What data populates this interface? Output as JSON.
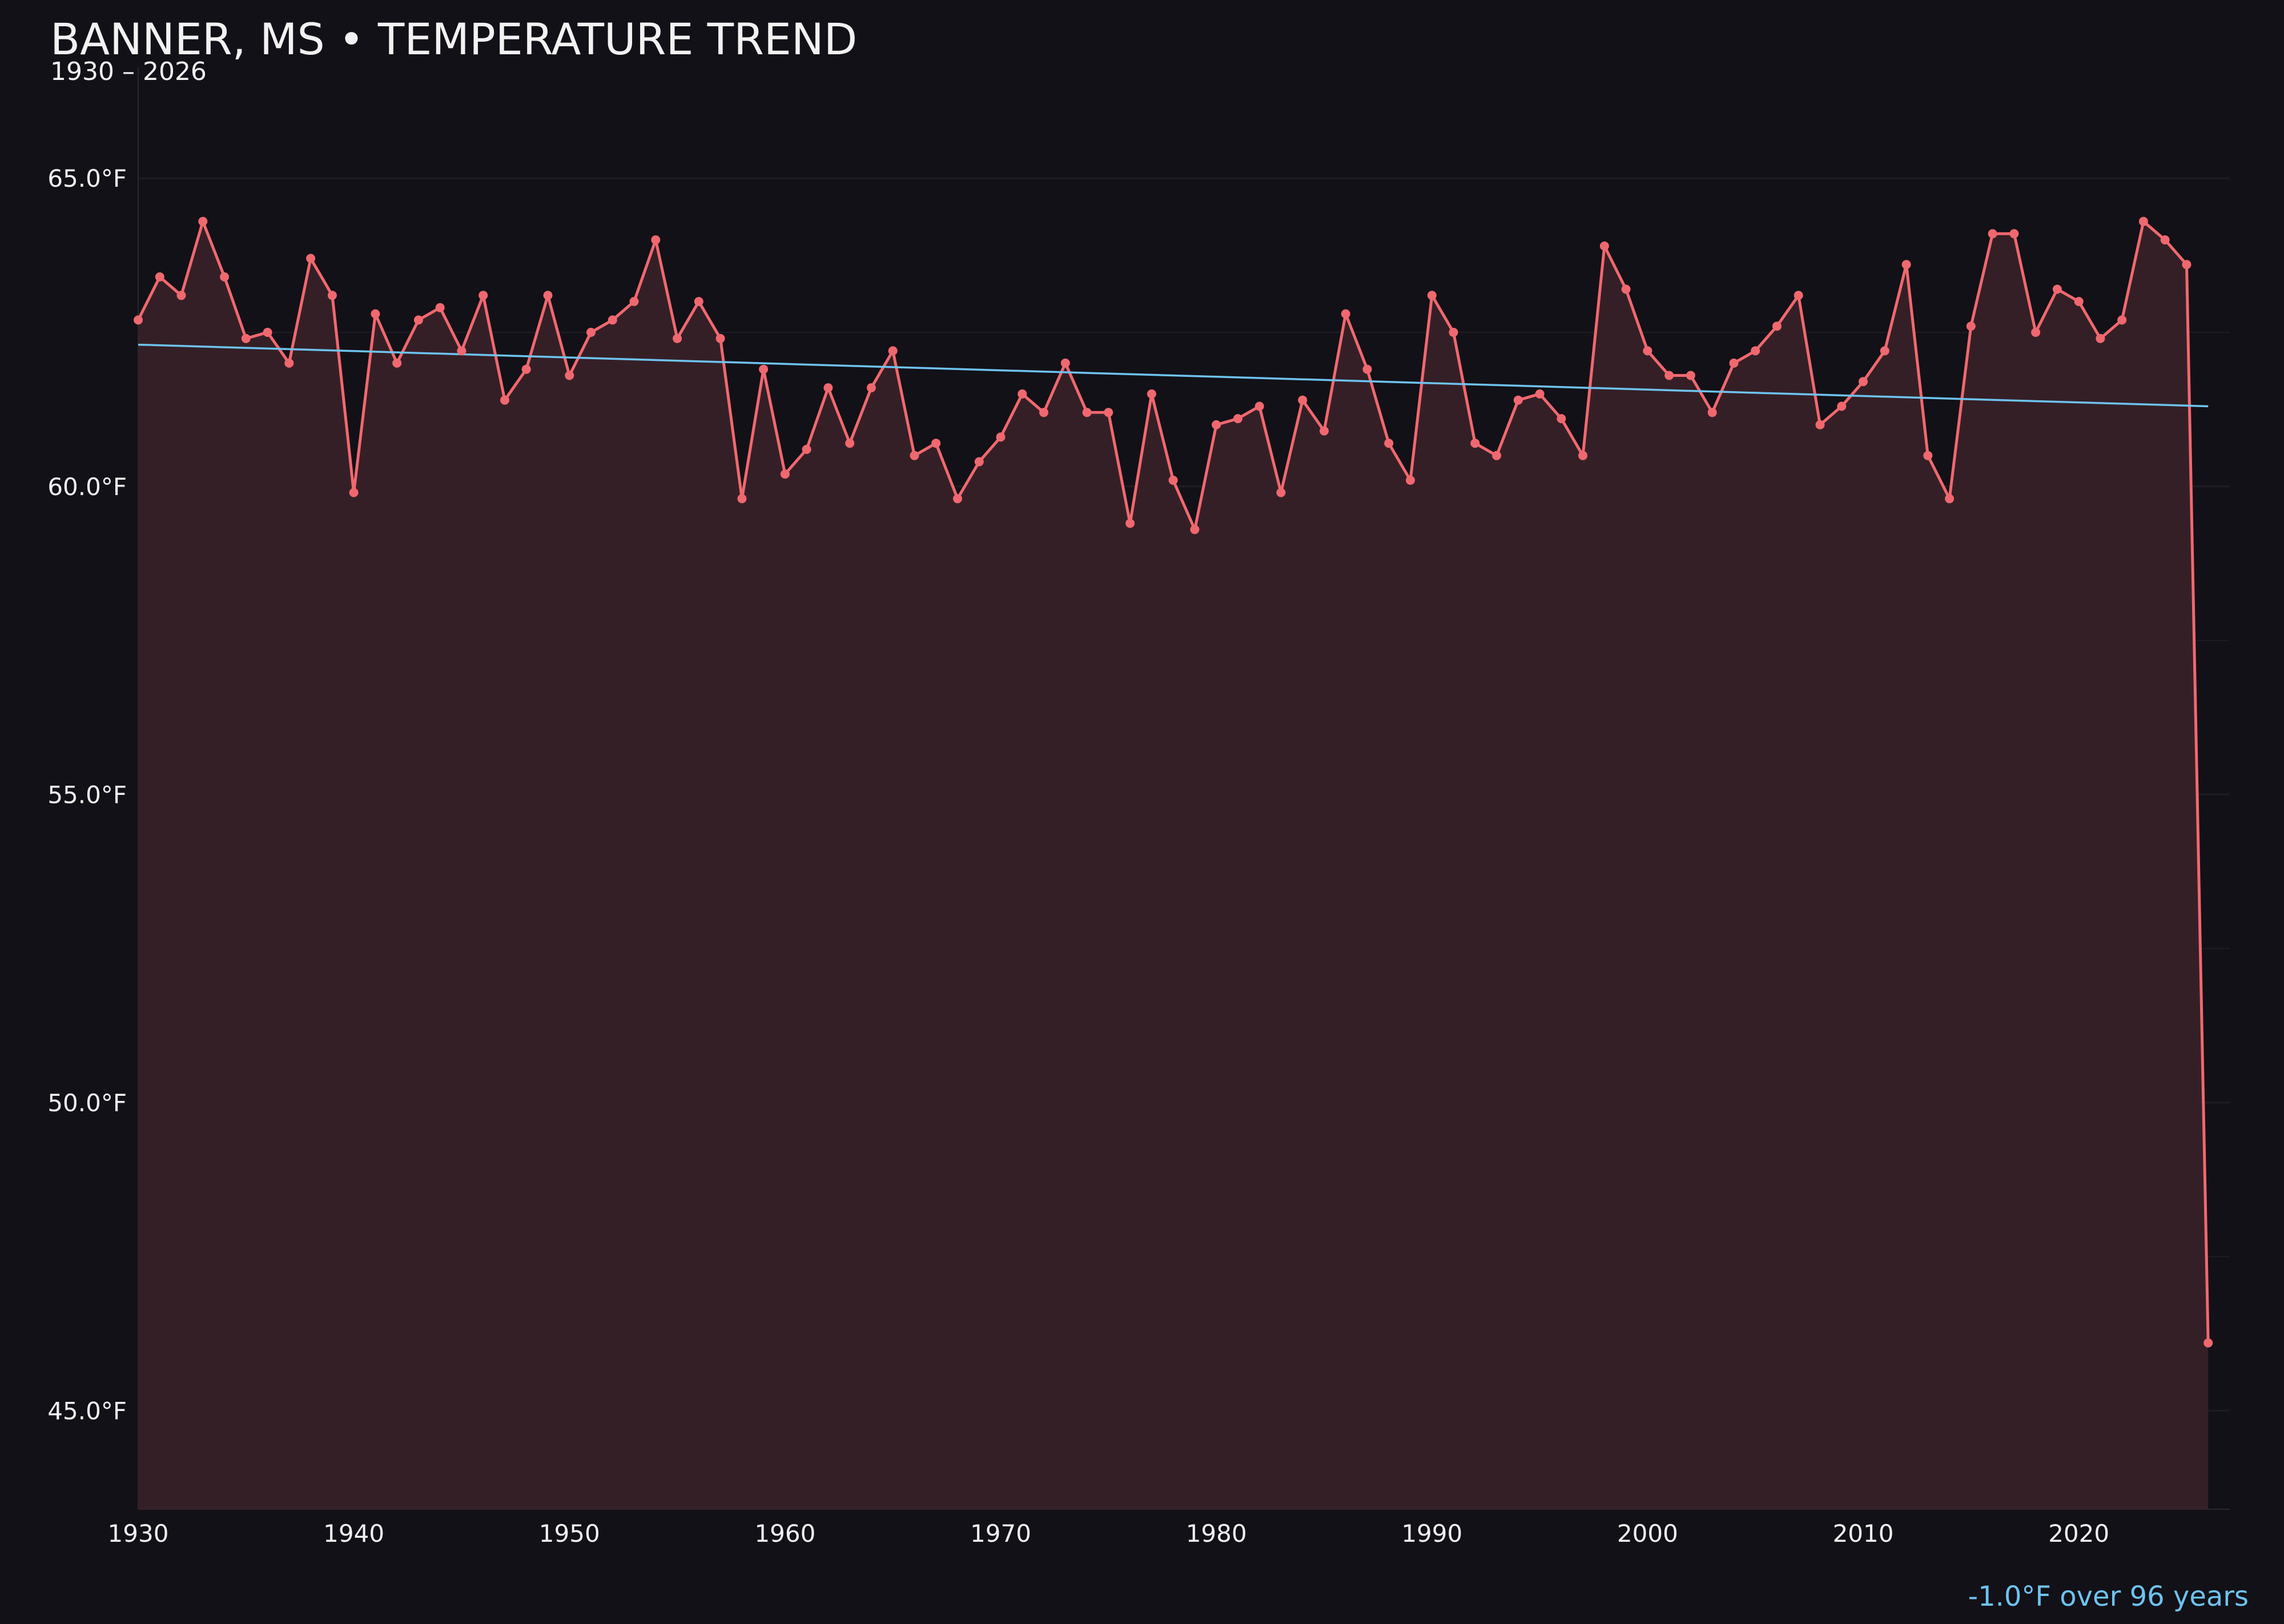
{
  "chart_data": {
    "type": "line",
    "title": "BANNER, MS • TEMPERATURE TREND",
    "subtitle": "1930 – 2026",
    "annotation": "-1.0°F over 96 years",
    "xlabel": "",
    "ylabel": "",
    "xlim": [
      1930,
      2027
    ],
    "ylim": [
      43.4,
      66.8
    ],
    "xticks": [
      1930,
      1940,
      1950,
      1960,
      1970,
      1980,
      1990,
      2000,
      2010,
      2020
    ],
    "yticks": [
      45.0,
      50.0,
      55.0,
      60.0,
      65.0
    ],
    "ytick_format": "°F",
    "grid": "horizontal",
    "legend": "none",
    "area_fill": true,
    "series": [
      {
        "x": [
          1930,
          1931,
          1932,
          1933,
          1934,
          1935,
          1936,
          1937,
          1938,
          1939,
          1940,
          1941,
          1942,
          1943,
          1944,
          1945,
          1946,
          1947,
          1948,
          1949,
          1950,
          1951,
          1952,
          1953,
          1954,
          1955,
          1956,
          1957,
          1958,
          1959,
          1960,
          1961,
          1962,
          1963,
          1964,
          1965,
          1966,
          1967,
          1968,
          1969,
          1970,
          1971,
          1972,
          1973,
          1974,
          1975,
          1976,
          1977,
          1978,
          1979,
          1980,
          1981,
          1982,
          1983,
          1984,
          1985,
          1986,
          1987,
          1988,
          1989,
          1990,
          1991,
          1992,
          1993,
          1994,
          1995,
          1996,
          1997,
          1998,
          1999,
          2000,
          2001,
          2002,
          2003,
          2004,
          2005,
          2006,
          2007,
          2008,
          2009,
          2010,
          2011,
          2012,
          2013,
          2014,
          2015,
          2016,
          2017,
          2018,
          2019,
          2020,
          2021,
          2022,
          2023,
          2024,
          2025,
          2026
        ],
        "values": [
          62.7,
          63.4,
          63.1,
          64.3,
          63.4,
          62.4,
          62.5,
          62.0,
          63.7,
          63.1,
          59.9,
          62.8,
          62.0,
          62.7,
          62.9,
          62.2,
          63.1,
          61.4,
          61.9,
          63.1,
          61.8,
          62.5,
          62.7,
          63.0,
          64.0,
          62.4,
          63.0,
          62.4,
          59.8,
          61.9,
          60.2,
          60.6,
          61.6,
          60.7,
          61.6,
          62.2,
          60.5,
          60.7,
          59.8,
          60.4,
          60.8,
          61.5,
          61.2,
          62.0,
          61.2,
          61.2,
          59.4,
          61.5,
          60.1,
          59.3,
          61.0,
          61.1,
          61.3,
          59.9,
          61.4,
          60.9,
          62.8,
          61.9,
          60.7,
          60.1,
          63.1,
          62.5,
          60.7,
          60.5,
          61.4,
          61.5,
          61.1,
          60.5,
          63.9,
          63.2,
          62.2,
          61.8,
          61.8,
          61.2,
          62.0,
          62.2,
          62.6,
          63.1,
          61.0,
          61.3,
          61.7,
          62.2,
          63.6,
          60.5,
          59.8,
          62.6,
          64.1,
          64.1,
          62.5,
          63.2,
          63.0,
          62.4,
          62.7,
          64.3,
          64.0,
          63.6,
          46.1
        ],
        "color": "#f0686f"
      }
    ],
    "trend": {
      "x": [
        1930,
        2026
      ],
      "values": [
        62.3,
        61.3
      ],
      "color": "#6ec3f0"
    },
    "colors": {
      "background": "#121117",
      "area_fill": "#351f26",
      "text": "#f2f2f2",
      "grid": "#1f1c23",
      "annotation": "#6ec3f0"
    }
  }
}
